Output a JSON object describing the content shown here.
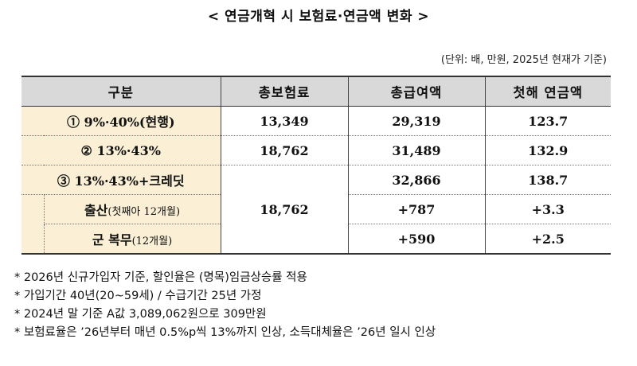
{
  "title": "< 연금개혁 시 보험료·연금액 변화 >",
  "unit_note": "(단위: 배, 만원, 2025년 현재가 기준)",
  "table": {
    "headers": [
      "구분",
      "총보험료",
      "총급여액",
      "첫해 연금액"
    ],
    "rows": [
      {
        "label": "① 9%·40%(현행)",
        "premium": "13,349",
        "benefit": "29,319",
        "first_year": "123.7"
      },
      {
        "label": "② 13%·43%",
        "premium": "18,762",
        "benefit": "31,489",
        "first_year": "132.9"
      },
      {
        "label": "③ 13%·43%+크레딧",
        "premium": "18,762",
        "benefit": "32,866",
        "first_year": "138.7"
      }
    ],
    "subrows": [
      {
        "label": "출산",
        "note": "(첫째아 12개월)",
        "benefit": "+787",
        "first_year": "+3.3"
      },
      {
        "label": "군 복무",
        "note": "(12개월)",
        "benefit": "+590",
        "first_year": "+2.5"
      }
    ]
  },
  "notes": [
    "* 2026년 신규가입자 기준, 할인율은 (명목)임금상승률 적용",
    "* 가입기간 40년(20~59세) / 수급기간 25년 가정",
    "* 2024년 말 기준 A값 3,089,062원으로 309만원",
    "* 보험료율은 ’26년부터 매년 0.5%p씩 13%까지 인상, 소득대체율은 ’26년 일시 인상"
  ]
}
